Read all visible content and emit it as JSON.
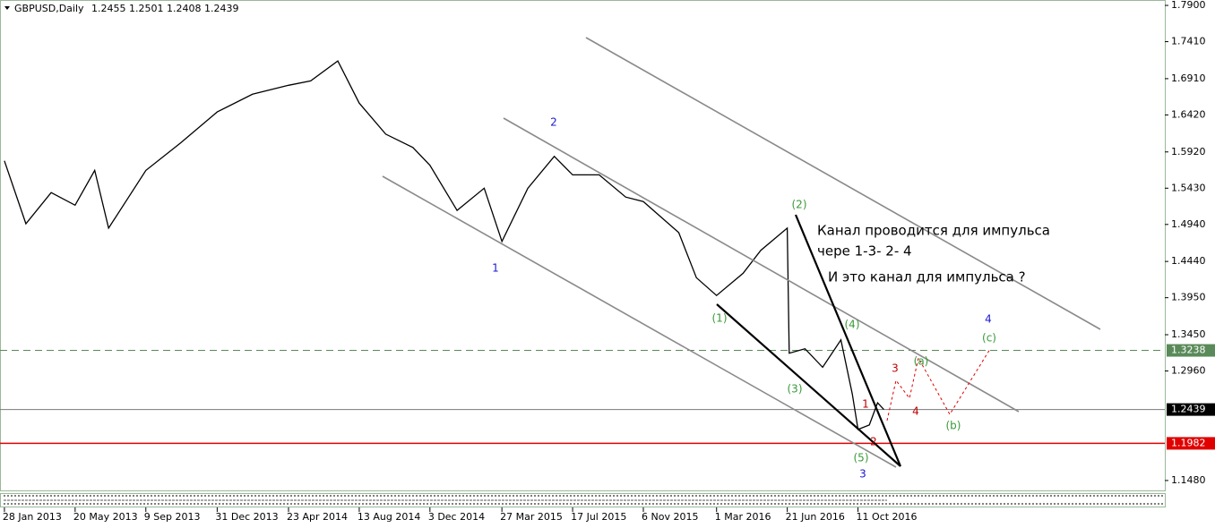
{
  "chart_data": {
    "type": "line",
    "title": "GBPUSD,Daily",
    "ohlc": [
      1.2455,
      1.2501,
      1.2408,
      1.2439
    ],
    "color": "#000000",
    "x": [
      "28 Jan 2013",
      "3 Mar 2013",
      "12 Apr 2013",
      "20 May 2013",
      "20 Jun 2013",
      "12 Jul 2013",
      "9 Sep 2013",
      "3 Nov 2013",
      "31 Dec 2013",
      "25 Feb 2014",
      "23 Apr 2014",
      "28 May 2014",
      "10 Jul 2014",
      "13 Aug 2014",
      "24 Sep 2014",
      "6 Nov 2014",
      "3 Dec 2014",
      "15 Jan 2015",
      "27 Feb 2015",
      "27 Mar 2015",
      "7 May 2015",
      "18 Jun 2015",
      "17 Jul 2015",
      "28 Aug 2015",
      "9 Oct 2015",
      "6 Nov 2015",
      "1 Jan 2016",
      "29 Jan 2016",
      "1 Mar 2016",
      "12 Apr 2016",
      "10 May 2016",
      "21 Jun 2016",
      "24 Jun 2016",
      "19 Jul 2016",
      "16 Aug 2016",
      "14 Sep 2016",
      "2 Oct 2016",
      "11 Oct 2016",
      "29 Oct 2016",
      "11 Nov 2016",
      "21 Nov 2016"
    ],
    "values": [
      1.58,
      1.495,
      1.537,
      1.52,
      1.567,
      1.489,
      1.567,
      1.604,
      1.646,
      1.67,
      1.682,
      1.688,
      1.715,
      1.658,
      1.616,
      1.598,
      1.574,
      1.513,
      1.543,
      1.471,
      1.543,
      1.586,
      1.561,
      1.561,
      1.531,
      1.525,
      1.483,
      1.422,
      1.398,
      1.428,
      1.459,
      1.489,
      1.32,
      1.326,
      1.301,
      1.338,
      1.265,
      1.217,
      1.223,
      1.253,
      1.2439
    ],
    "xlim": [
      "21 Jan 2013",
      "9 Feb 2018"
    ],
    "xticks": [
      "28 Jan 2013",
      "20 May 2013",
      "9 Sep 2013",
      "31 Dec 2013",
      "23 Apr 2014",
      "13 Aug 2014",
      "3 Dec 2014",
      "27 Mar 2015",
      "17 Jul 2015",
      "6 Nov 2015",
      "1 Mar 2016",
      "21 Jun 2016",
      "11 Oct 2016"
    ],
    "ylim": [
      1.1346,
      1.7973
    ],
    "yticks": [
      {
        "value": 1.79,
        "label": "1.7900"
      },
      {
        "value": 1.741,
        "label": "1.7410"
      },
      {
        "value": 1.691,
        "label": "1.6910"
      },
      {
        "value": 1.642,
        "label": "1.6420"
      },
      {
        "value": 1.592,
        "label": "1.5920"
      },
      {
        "value": 1.543,
        "label": "1.5430"
      },
      {
        "value": 1.494,
        "label": "1.4940"
      },
      {
        "value": 1.444,
        "label": "1.4440"
      },
      {
        "value": 1.395,
        "label": "1.3950"
      },
      {
        "value": 1.345,
        "label": "1.3450"
      },
      {
        "value": 1.296,
        "label": "1.2960"
      },
      {
        "value": 1.148,
        "label": "1.1480"
      }
    ],
    "hlines": [
      {
        "value": 1.3238,
        "color": "#5a8a5a",
        "style": "dashed"
      },
      {
        "value": 1.2439,
        "color": "#7a7a7a",
        "style": "solid"
      },
      {
        "value": 1.1982,
        "color": "#e00000",
        "style": "solid"
      }
    ],
    "annotations": [
      "Канал проводится для импульса",
      "чере 1-3-  2- 4",
      "И это канал для импульса ?"
    ],
    "waves": {
      "blue": [
        "1",
        "2",
        "3",
        "4"
      ],
      "green": [
        "(1)",
        "(2)",
        "(3)",
        "(4)",
        "(5)",
        "(a)",
        "(b)",
        "(c)"
      ],
      "red": [
        "1",
        "2",
        "3",
        "4"
      ]
    }
  }
}
